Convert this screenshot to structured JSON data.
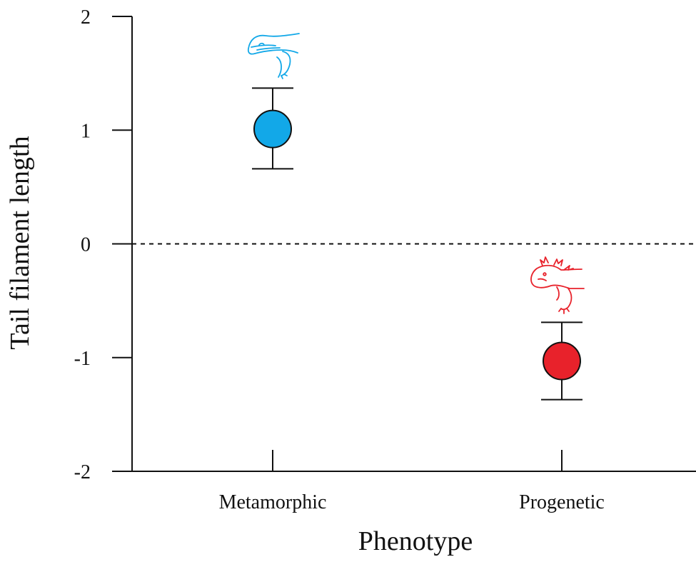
{
  "chart_data": {
    "type": "scatter",
    "xlabel": "Phenotype",
    "ylabel": "Tail filament length",
    "ylim": [
      -2,
      2
    ],
    "yticks": [
      "2",
      "1",
      "0",
      "-1",
      "-2"
    ],
    "ytick_values": [
      2,
      1,
      0,
      -1,
      -2
    ],
    "categories": [
      "Metamorphic",
      "Progenetic"
    ],
    "points": [
      {
        "category": "Metamorphic",
        "mean": 1.01,
        "lower": 0.66,
        "upper": 1.37,
        "color": "#12a8e8",
        "icon": "salamander-icon"
      },
      {
        "category": "Progenetic",
        "mean": -1.03,
        "lower": -1.37,
        "upper": -0.69,
        "color": "#e8222b",
        "icon": "axolotl-icon"
      }
    ],
    "reference_line": 0,
    "grid": false
  }
}
